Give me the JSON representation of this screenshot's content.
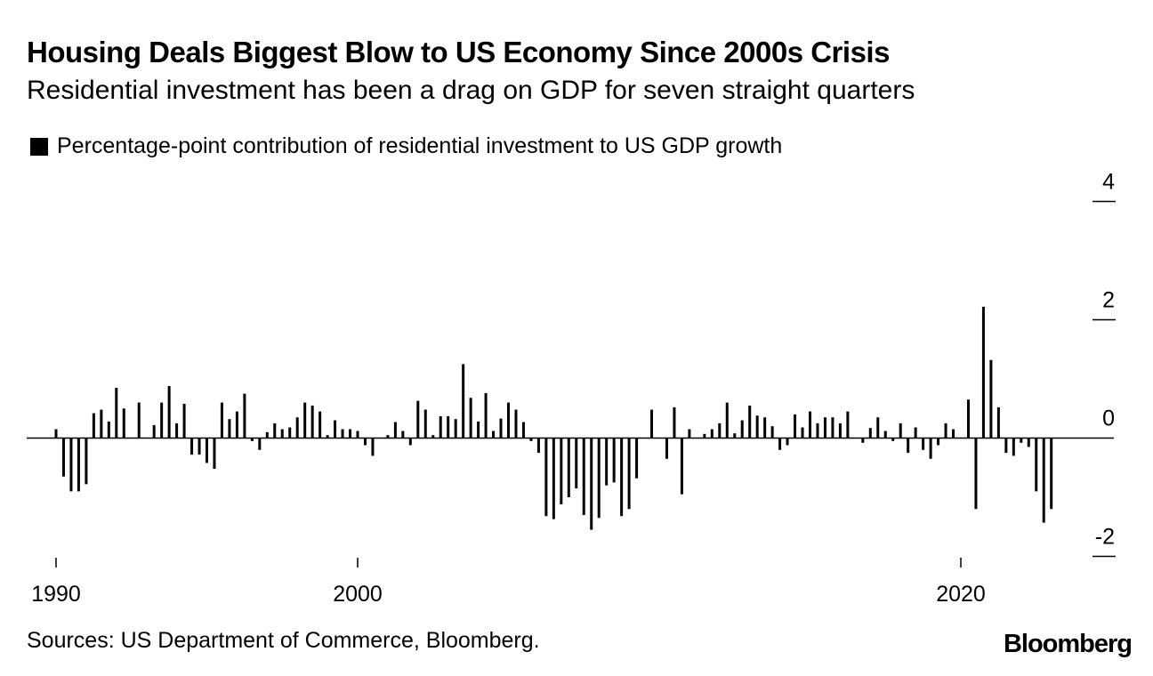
{
  "header": {
    "title": "Housing Deals Biggest Blow to US Economy Since 2000s Crisis",
    "subtitle": "Residential investment has been a drag on GDP for seven straight quarters"
  },
  "legend": {
    "label": "Percentage-point contribution of residential investment to US GDP growth"
  },
  "footer": {
    "source": "Sources: US Department of Commerce, Bloomberg.",
    "brand": "Bloomberg"
  },
  "colors": {
    "bar": "#000000",
    "background": "#ffffff"
  },
  "chart_data": {
    "type": "bar",
    "title": "Housing Deals Biggest Blow to US Economy Since 2000s Crisis",
    "subtitle": "Residential investment has been a drag on GDP for seven straight quarters",
    "xlabel": "",
    "ylabel": "",
    "ylim": [
      -2,
      4
    ],
    "yticks": [
      4,
      2,
      0,
      -2
    ],
    "ytick_labels": [
      "4",
      "2",
      "0",
      "-2"
    ],
    "xlim": [
      1990,
      2022.75
    ],
    "xticks": [
      1990,
      2000,
      2020
    ],
    "xtick_labels": [
      "1990",
      "2000",
      "2020"
    ],
    "x_start": 1990.0,
    "x_step": 0.25,
    "legend_position": "top-left",
    "grid": false,
    "series": [
      {
        "name": "Percentage-point contribution of residential investment to US GDP growth",
        "values": [
          0.15,
          -0.65,
          -0.9,
          -0.9,
          -0.78,
          0.42,
          0.48,
          0.28,
          0.85,
          0.5,
          0.0,
          0.6,
          0.0,
          0.22,
          0.6,
          0.88,
          0.25,
          0.58,
          -0.28,
          -0.28,
          -0.42,
          -0.52,
          0.6,
          0.32,
          0.45,
          0.75,
          -0.05,
          -0.2,
          0.1,
          0.25,
          0.15,
          0.18,
          0.35,
          0.6,
          0.55,
          0.45,
          0.05,
          0.3,
          0.15,
          0.15,
          0.12,
          -0.12,
          -0.3,
          0.0,
          0.05,
          0.27,
          0.12,
          -0.12,
          0.63,
          0.48,
          0.05,
          0.37,
          0.37,
          0.32,
          1.25,
          0.68,
          0.28,
          0.76,
          0.12,
          0.33,
          0.6,
          0.48,
          0.27,
          -0.05,
          -0.25,
          -1.32,
          -1.37,
          -1.12,
          -1.0,
          -0.85,
          -1.3,
          -1.55,
          -1.35,
          -0.8,
          -0.75,
          -1.32,
          -1.2,
          -0.68,
          0.0,
          0.48,
          0.0,
          -0.35,
          0.52,
          -0.95,
          0.15,
          0.0,
          0.07,
          0.15,
          0.25,
          0.6,
          0.08,
          0.3,
          0.55,
          0.38,
          0.35,
          0.2,
          -0.2,
          -0.12,
          0.4,
          0.18,
          0.45,
          0.25,
          0.35,
          0.35,
          0.25,
          0.45,
          0.0,
          -0.08,
          0.17,
          0.35,
          0.12,
          -0.05,
          0.25,
          -0.25,
          0.18,
          -0.2,
          -0.35,
          -0.12,
          0.25,
          0.15,
          0.0,
          0.65,
          -1.2,
          2.22,
          1.32,
          0.52,
          -0.25,
          -0.3,
          -0.08,
          -0.15,
          -0.9,
          -1.43,
          -1.2
        ]
      }
    ]
  }
}
